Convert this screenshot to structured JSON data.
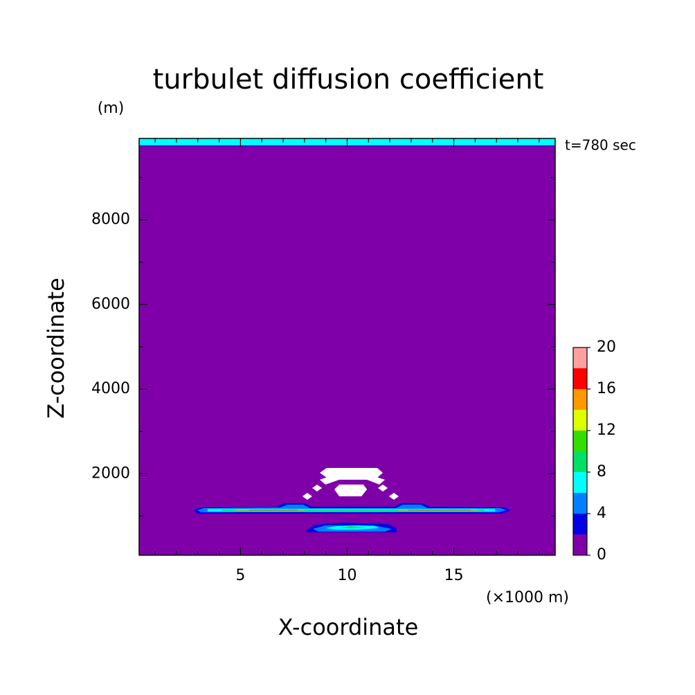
{
  "chart_data": {
    "type": "contour",
    "title": "turbulet diffusion coefficient",
    "y_unit": "(m)",
    "x_unit": "(×1000 m)",
    "x_label": "X-coordinate",
    "y_label": "Z-coordinate",
    "annotation": "t=780 sec",
    "xlim": [
      0.25,
      19.75
    ],
    "ylim": [
      75,
      9925
    ],
    "xticks": [
      5,
      10,
      15
    ],
    "yticks": [
      2000,
      4000,
      6000,
      8000
    ],
    "xticks_minor": [
      1,
      2,
      3,
      4,
      6,
      7,
      8,
      9,
      11,
      12,
      13,
      14,
      16,
      17,
      18,
      19
    ],
    "yticks_minor": [
      1000,
      3000,
      5000,
      7000,
      9000
    ],
    "background_level": 1,
    "levels": [
      0,
      2,
      4,
      6,
      8,
      10,
      12,
      14,
      16,
      18,
      20
    ],
    "colors": [
      "#7f00a8",
      "#0000e6",
      "#0080ff",
      "#00ffff",
      "#00e066",
      "#33dd00",
      "#ddff00",
      "#ff9900",
      "#ff0000",
      "#ffa0a0"
    ],
    "over_color": "#ffffff",
    "colorbar_ticks": [
      0,
      4,
      8,
      12,
      16,
      20
    ],
    "regions": [
      {
        "level": 3,
        "points": [
          [
            0.25,
            9740
          ],
          [
            19.75,
            9740
          ],
          [
            19.75,
            9925
          ],
          [
            0.25,
            9925
          ]
        ]
      },
      {
        "level": 7,
        "points": [
          [
            0.25,
            9760
          ],
          [
            19.75,
            9760
          ],
          [
            19.75,
            9925
          ],
          [
            0.25,
            9925
          ]
        ]
      },
      {
        "level": 3,
        "points": [
          [
            8.1,
            664
          ],
          [
            8.49,
            795
          ],
          [
            9.95,
            844
          ],
          [
            11.9,
            811
          ],
          [
            12.32,
            713
          ],
          [
            12.32,
            615
          ],
          [
            8.1,
            615
          ]
        ]
      },
      {
        "level": 5,
        "points": [
          [
            8.39,
            697
          ],
          [
            8.98,
            779
          ],
          [
            11.25,
            779
          ],
          [
            12.09,
            697
          ],
          [
            11.77,
            631
          ],
          [
            8.65,
            631
          ]
        ]
      },
      {
        "level": 7,
        "points": [
          [
            8.98,
            713
          ],
          [
            9.5,
            762
          ],
          [
            10.5,
            779
          ],
          [
            11.3,
            762
          ],
          [
            11.5,
            713
          ],
          [
            10.5,
            680
          ],
          [
            9.5,
            680
          ]
        ]
      },
      {
        "level": 9,
        "points": [
          [
            9.6,
            730
          ],
          [
            10.2,
            762
          ],
          [
            10.9,
            730
          ],
          [
            10.2,
            705
          ]
        ]
      },
      {
        "level": 3,
        "points": [
          [
            2.78,
            1139
          ],
          [
            3.14,
            1204
          ],
          [
            6.71,
            1220
          ],
          [
            7.03,
            1302
          ],
          [
            8.0,
            1302
          ],
          [
            8.33,
            1220
          ],
          [
            12.22,
            1220
          ],
          [
            12.55,
            1302
          ],
          [
            13.52,
            1302
          ],
          [
            13.85,
            1220
          ],
          [
            17.35,
            1204
          ],
          [
            17.67,
            1139
          ],
          [
            17.25,
            1057
          ],
          [
            2.98,
            1057
          ]
        ]
      },
      {
        "level": 5,
        "points": [
          [
            2.98,
            1139
          ],
          [
            3.3,
            1188
          ],
          [
            6.87,
            1204
          ],
          [
            7.19,
            1269
          ],
          [
            7.94,
            1269
          ],
          [
            8.26,
            1188
          ],
          [
            12.29,
            1188
          ],
          [
            12.61,
            1269
          ],
          [
            13.46,
            1269
          ],
          [
            13.78,
            1188
          ],
          [
            17.15,
            1188
          ],
          [
            17.48,
            1139
          ],
          [
            17.09,
            1089
          ],
          [
            3.14,
            1089
          ]
        ]
      },
      {
        "level": 7,
        "points": [
          [
            3.46,
            1105
          ],
          [
            16.93,
            1105
          ],
          [
            16.93,
            1171
          ],
          [
            3.46,
            1171
          ]
        ]
      },
      {
        "level": 9,
        "points": [
          [
            4.11,
            1122
          ],
          [
            16.44,
            1122
          ],
          [
            16.44,
            1155
          ],
          [
            4.11,
            1155
          ]
        ]
      },
      {
        "level": 15,
        "points": [
          [
            4.76,
            1130
          ],
          [
            8.0,
            1130
          ],
          [
            8.0,
            1147
          ],
          [
            4.76,
            1147
          ]
        ]
      },
      {
        "level": 15,
        "points": [
          [
            12.38,
            1130
          ],
          [
            16.11,
            1130
          ],
          [
            16.11,
            1147
          ],
          [
            12.38,
            1147
          ]
        ]
      },
      {
        "level": 17,
        "points": [
          [
            5.41,
            1134
          ],
          [
            7.68,
            1134
          ],
          [
            7.68,
            1143
          ],
          [
            5.41,
            1143
          ]
        ]
      },
      {
        "level": 17,
        "points": [
          [
            12.87,
            1134
          ],
          [
            15.79,
            1134
          ],
          [
            15.79,
            1143
          ],
          [
            12.87,
            1143
          ]
        ]
      },
      {
        "level": 22,
        "points": [
          [
            8.72,
            2022
          ],
          [
            9.04,
            2137
          ],
          [
            11.41,
            2137
          ],
          [
            11.67,
            2022
          ],
          [
            11.41,
            1908
          ],
          [
            9.04,
            1908
          ]
        ]
      },
      {
        "level": 22,
        "points": [
          [
            8.72,
            1858
          ],
          [
            9.17,
            1940
          ],
          [
            11.25,
            1940
          ],
          [
            11.77,
            1858
          ],
          [
            11.51,
            1744
          ],
          [
            10.93,
            1858
          ],
          [
            9.63,
            1858
          ],
          [
            8.98,
            1744
          ]
        ]
      },
      {
        "level": 22,
        "points": [
          [
            9.4,
            1629
          ],
          [
            9.63,
            1744
          ],
          [
            10.76,
            1744
          ],
          [
            10.93,
            1629
          ],
          [
            10.67,
            1466
          ],
          [
            9.63,
            1466
          ]
        ]
      },
      {
        "level": 22,
        "points": [
          [
            7.9,
            1466
          ],
          [
            8.13,
            1548
          ],
          [
            8.36,
            1466
          ],
          [
            8.13,
            1384
          ]
        ]
      },
      {
        "level": 22,
        "points": [
          [
            8.36,
            1662
          ],
          [
            8.59,
            1744
          ],
          [
            8.82,
            1662
          ],
          [
            8.59,
            1580
          ]
        ]
      },
      {
        "level": 22,
        "points": [
          [
            11.44,
            1662
          ],
          [
            11.67,
            1744
          ],
          [
            11.9,
            1662
          ],
          [
            11.67,
            1580
          ]
        ]
      },
      {
        "level": 22,
        "points": [
          [
            11.96,
            1466
          ],
          [
            12.19,
            1548
          ],
          [
            12.42,
            1466
          ],
          [
            12.19,
            1384
          ]
        ]
      }
    ]
  }
}
